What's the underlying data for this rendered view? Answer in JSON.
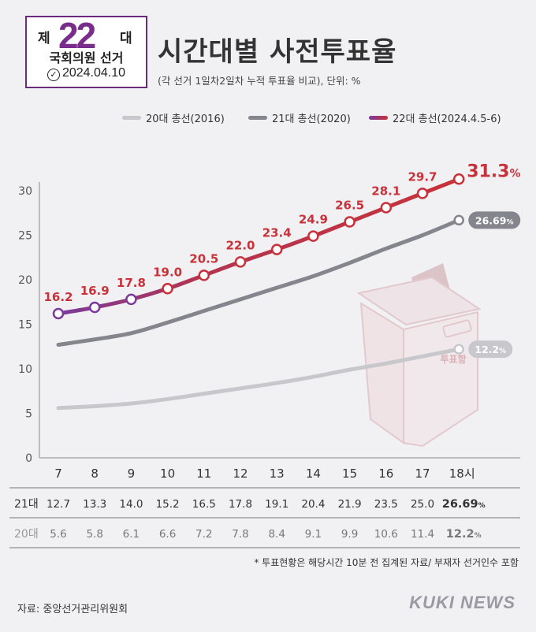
{
  "logo": {
    "prefix": "제",
    "number": "22",
    "suffix": "대",
    "subtitle": "국회의원 선거",
    "date": "2024.04.10",
    "date_icon": "circle-check-icon"
  },
  "header": {
    "title": "시간대별 사전투표율",
    "subtitle": "(각 선거 1일차2일차 누적 투표율 비교), 단위: %"
  },
  "colors": {
    "s20": "#c8c8cc",
    "s21": "#85858d",
    "s22_start": "#7b3a9c",
    "s22_end": "#c8323a",
    "label_red": "#c8323a"
  },
  "chart_data": {
    "type": "line",
    "x": [
      "7",
      "8",
      "9",
      "10",
      "11",
      "12",
      "13",
      "14",
      "15",
      "16",
      "17",
      "18시"
    ],
    "ylim": [
      0,
      30
    ],
    "yticks": [
      0,
      5,
      10,
      15,
      20,
      25,
      30
    ],
    "grid": false,
    "legend_position": "top",
    "series": [
      {
        "name": "20대 총선(2016)",
        "values": [
          5.6,
          5.8,
          6.1,
          6.6,
          7.2,
          7.8,
          8.4,
          9.1,
          9.9,
          10.6,
          11.4,
          12.2
        ],
        "end_label": "12.2",
        "unit": "%"
      },
      {
        "name": "21대 총선(2020)",
        "values": [
          12.7,
          13.3,
          14.0,
          15.2,
          16.5,
          17.8,
          19.1,
          20.4,
          21.9,
          23.5,
          25.0,
          26.69
        ],
        "end_label": "26.69",
        "unit": "%"
      },
      {
        "name": "22대 총선(2024.4.5-6)",
        "values": [
          16.2,
          16.9,
          17.8,
          19.0,
          20.5,
          22.0,
          23.4,
          24.9,
          26.5,
          28.1,
          29.7,
          31.3
        ],
        "labels": [
          "16.2",
          "16.9",
          "17.8",
          "19.0",
          "20.5",
          "22.0",
          "23.4",
          "24.9",
          "26.5",
          "28.1",
          "29.7",
          "31.3"
        ],
        "unit": "%"
      }
    ],
    "table": {
      "rows": [
        {
          "label": "21대",
          "values": [
            "12.7",
            "13.3",
            "14.0",
            "15.2",
            "16.5",
            "17.8",
            "19.1",
            "20.4",
            "21.9",
            "23.5",
            "25.0",
            "26.69"
          ],
          "unit": "%"
        },
        {
          "label": "20대",
          "values": [
            "5.6",
            "5.8",
            "6.1",
            "6.6",
            "7.2",
            "7.8",
            "8.4",
            "9.1",
            "9.9",
            "10.6",
            "11.4",
            "12.2"
          ],
          "unit": "%"
        }
      ]
    },
    "ballot_box_text": "투표함",
    "ballot_box_icon": "ballot-box-icon"
  },
  "footer": {
    "note": "* 투표현황은 해당시간 10분 전 집계된 자료/ 부재자 선거인수 포함",
    "source": "자료: 중앙선거관리위원회",
    "brand": "KUKI NEWS"
  }
}
